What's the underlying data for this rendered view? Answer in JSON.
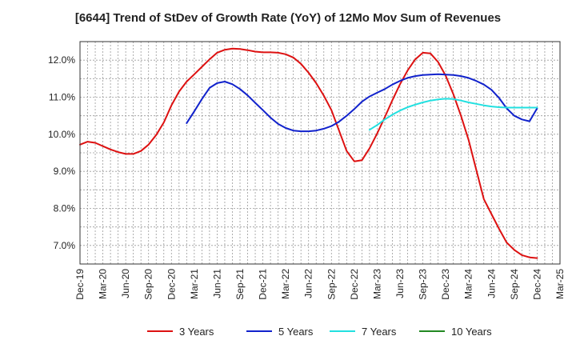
{
  "chart_data": {
    "type": "line",
    "title": "[6644]  Trend of StDev of Growth Rate (YoY) of 12Mo Mov Sum of Revenues",
    "xlabel": "",
    "ylabel": "",
    "ylim": [
      6.5,
      12.5
    ],
    "yticks": [
      7.0,
      8.0,
      9.0,
      10.0,
      11.0,
      12.0
    ],
    "ytick_labels": [
      "7.0%",
      "8.0%",
      "9.0%",
      "10.0%",
      "11.0%",
      "12.0%"
    ],
    "xlim": [
      0,
      63
    ],
    "xticks": [
      0,
      3,
      6,
      9,
      12,
      15,
      18,
      21,
      24,
      27,
      30,
      33,
      36,
      39,
      42,
      45,
      48,
      51,
      54,
      57,
      60,
      63
    ],
    "xtick_labels": [
      "Dec-19",
      "Mar-20",
      "Jun-20",
      "Sep-20",
      "Dec-20",
      "Mar-21",
      "Jun-21",
      "Sep-21",
      "Dec-21",
      "Mar-22",
      "Jun-22",
      "Sep-22",
      "Dec-22",
      "Mar-23",
      "Jun-23",
      "Sep-23",
      "Dec-23",
      "Mar-24",
      "Jun-24",
      "Sep-24",
      "Dec-24",
      "Mar-25"
    ],
    "grid": true,
    "legend_position": "bottom",
    "series": [
      {
        "name": "3 Years",
        "color": "#dd1111",
        "x": [
          0,
          1,
          2,
          3,
          4,
          5,
          6,
          7,
          8,
          9,
          10,
          11,
          12,
          13,
          14,
          15,
          16,
          17,
          18,
          19,
          20,
          21,
          22,
          23,
          24,
          25,
          26,
          27,
          28,
          29,
          30,
          31,
          32,
          33,
          34,
          35,
          36,
          37,
          38,
          39,
          40,
          41,
          42,
          43,
          44,
          45,
          46,
          47,
          48,
          49,
          50,
          51,
          52,
          53,
          54,
          55,
          56,
          57,
          58,
          59,
          60
        ],
        "values": [
          9.72,
          9.8,
          9.77,
          9.68,
          9.59,
          9.52,
          9.47,
          9.47,
          9.55,
          9.72,
          9.98,
          10.32,
          10.78,
          11.15,
          11.42,
          11.62,
          11.82,
          12.02,
          12.2,
          12.28,
          12.31,
          12.3,
          12.27,
          12.23,
          12.21,
          12.21,
          12.2,
          12.16,
          12.07,
          11.9,
          11.66,
          11.38,
          11.04,
          10.65,
          10.1,
          9.55,
          9.27,
          9.3,
          9.62,
          10.02,
          10.46,
          10.92,
          11.35,
          11.72,
          12.02,
          12.2,
          12.18,
          11.95,
          11.58,
          11.08,
          10.5,
          9.85,
          9.05,
          8.25,
          7.85,
          7.45,
          7.08,
          6.88,
          6.74,
          6.68,
          6.66
        ]
      },
      {
        "name": "5 Years",
        "color": "#1122cc",
        "x": [
          14,
          15,
          16,
          17,
          18,
          19,
          20,
          21,
          22,
          23,
          24,
          25,
          26,
          27,
          28,
          29,
          30,
          31,
          32,
          33,
          34,
          35,
          36,
          37,
          38,
          39,
          40,
          41,
          42,
          43,
          44,
          45,
          46,
          47,
          48,
          49,
          50,
          51,
          52,
          53,
          54,
          55,
          56,
          57,
          58,
          59,
          60
        ],
        "values": [
          10.3,
          10.62,
          10.95,
          11.25,
          11.38,
          11.42,
          11.35,
          11.22,
          11.05,
          10.85,
          10.65,
          10.45,
          10.28,
          10.17,
          10.1,
          10.08,
          10.08,
          10.1,
          10.15,
          10.22,
          10.34,
          10.5,
          10.68,
          10.88,
          11.02,
          11.12,
          11.22,
          11.34,
          11.44,
          11.52,
          11.57,
          11.6,
          11.61,
          11.62,
          11.61,
          11.6,
          11.57,
          11.52,
          11.44,
          11.34,
          11.2,
          10.98,
          10.7,
          10.5,
          10.4,
          10.35,
          10.7
        ]
      },
      {
        "name": "7 Years",
        "color": "#22e0e0",
        "x": [
          38,
          39,
          40,
          41,
          42,
          43,
          44,
          45,
          46,
          47,
          48,
          49,
          50,
          51,
          52,
          53,
          54,
          55,
          56,
          57,
          58,
          59,
          60
        ],
        "values": [
          10.12,
          10.25,
          10.4,
          10.53,
          10.64,
          10.73,
          10.8,
          10.86,
          10.91,
          10.94,
          10.96,
          10.95,
          10.91,
          10.86,
          10.82,
          10.78,
          10.75,
          10.73,
          10.72,
          10.72,
          10.72,
          10.72,
          10.72
        ]
      },
      {
        "name": "10 Years",
        "color": "#228822",
        "x": [],
        "values": []
      }
    ]
  }
}
